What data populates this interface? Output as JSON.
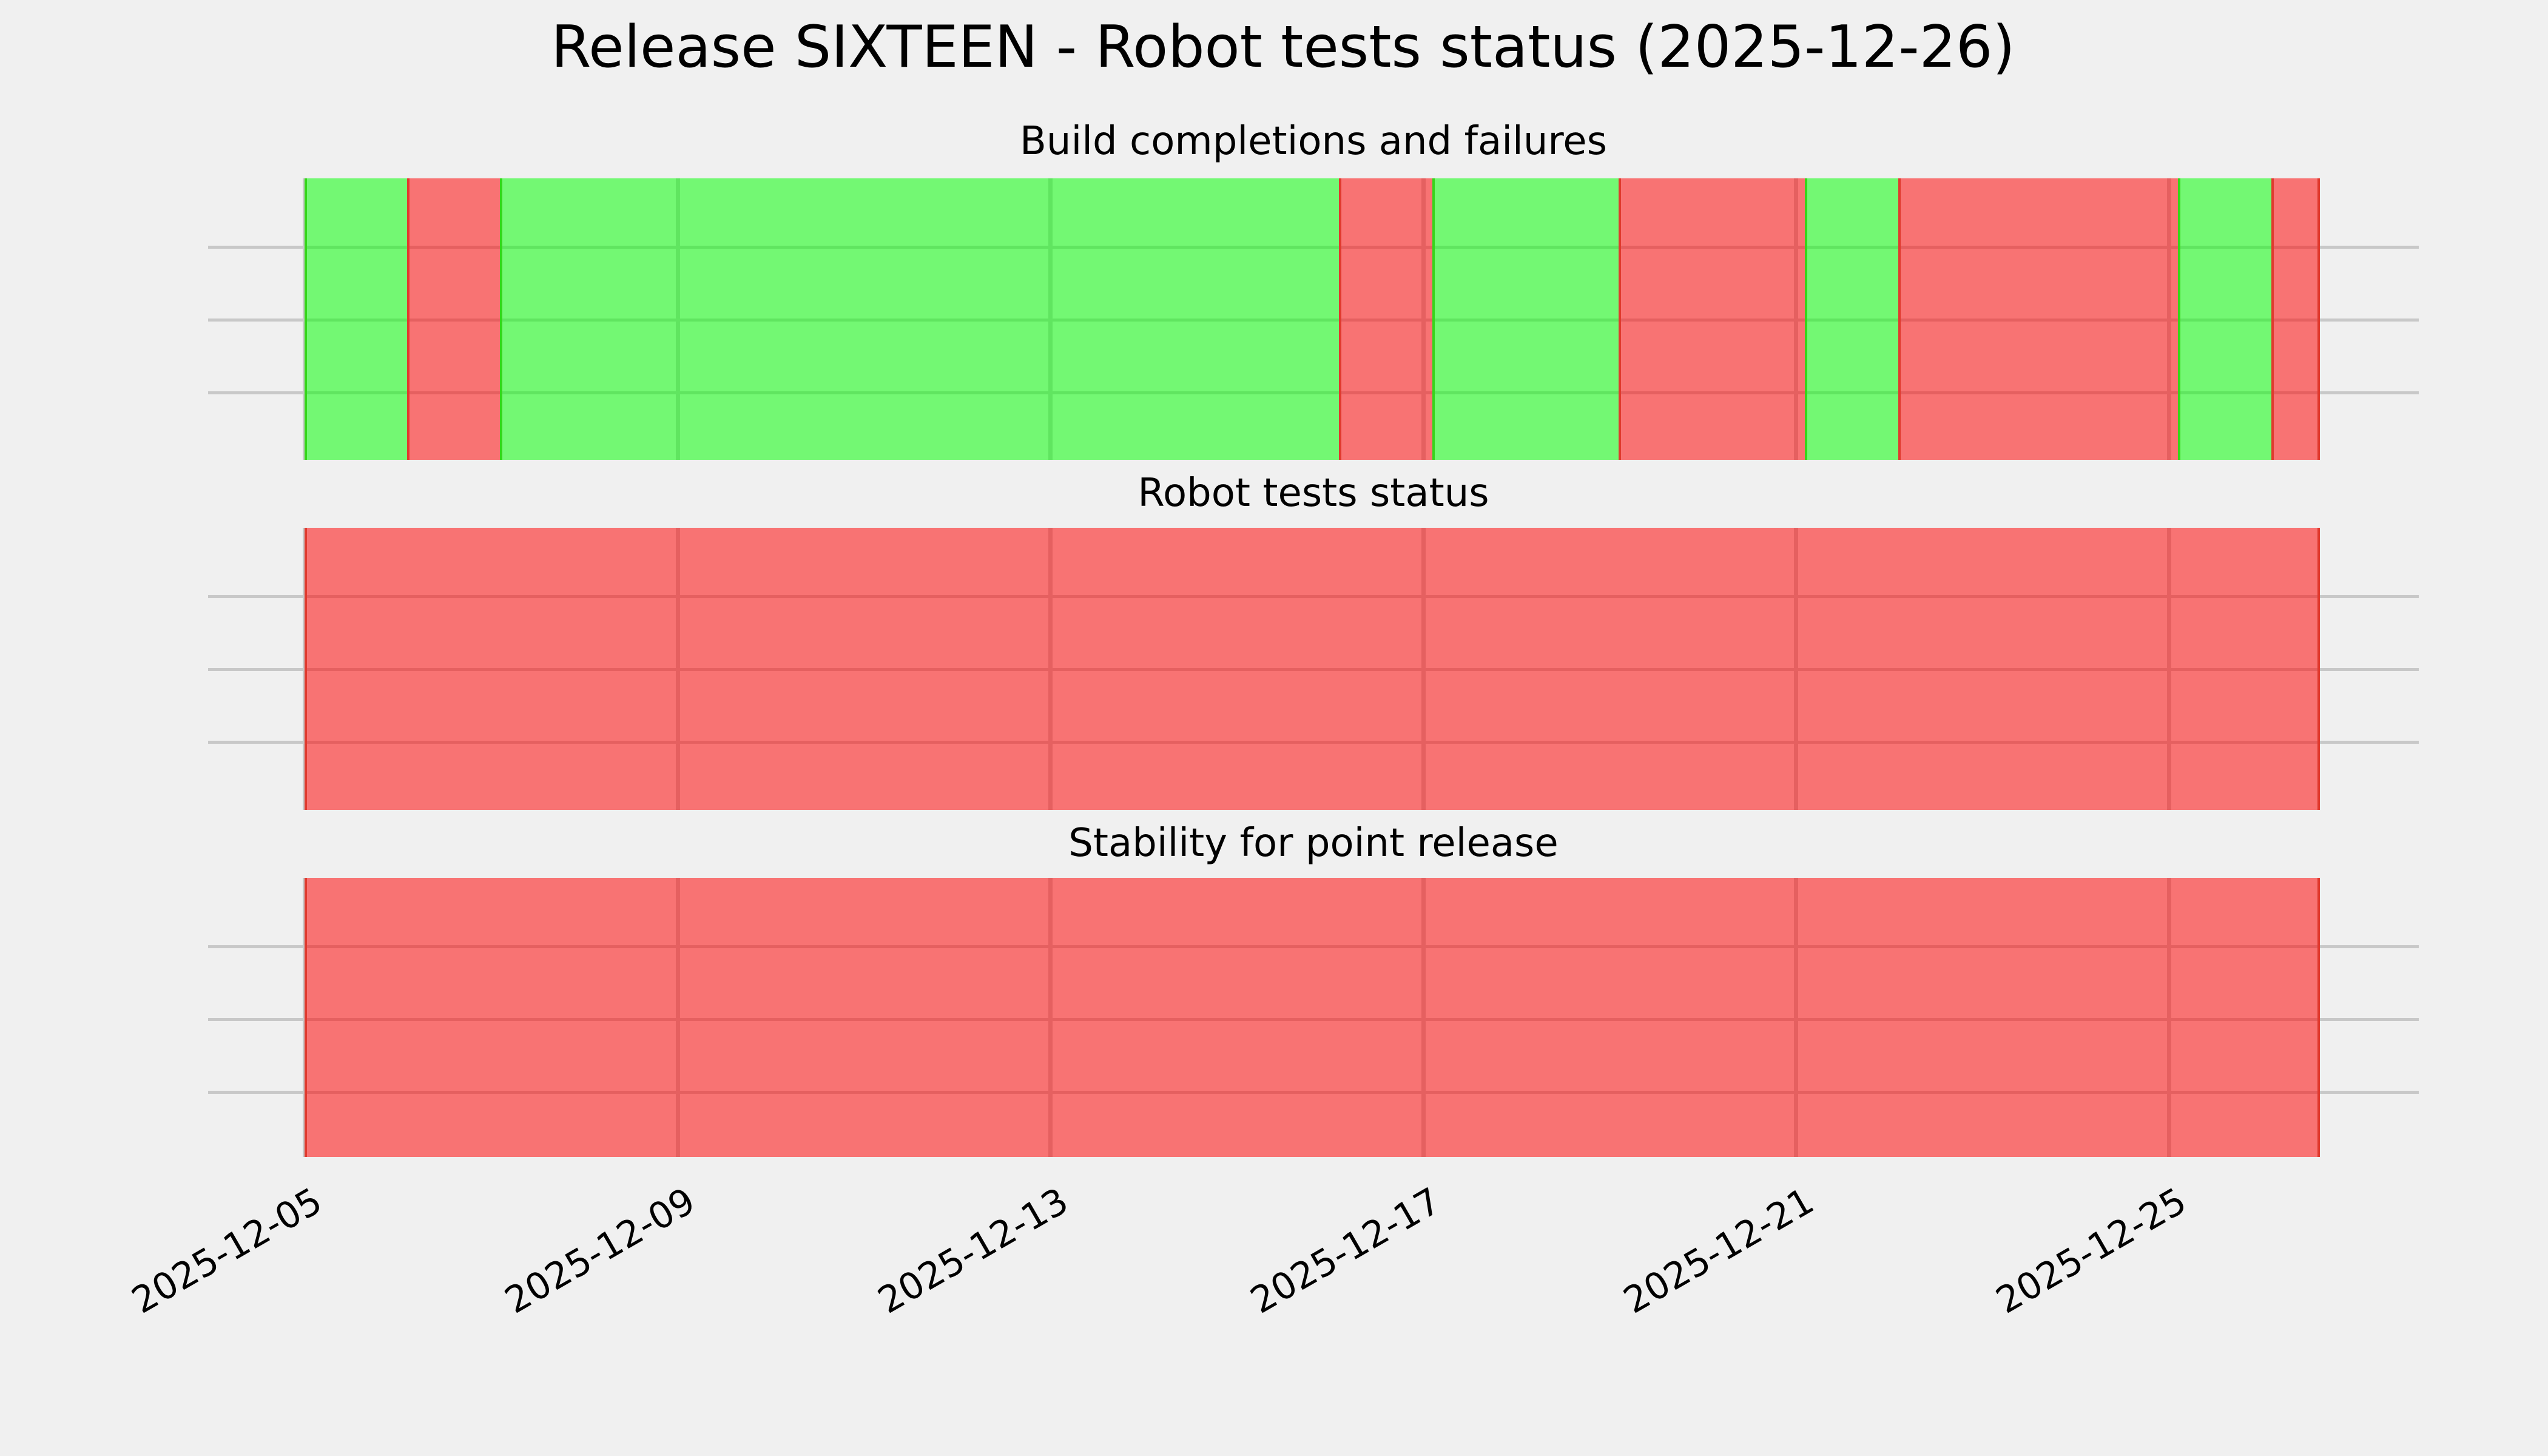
{
  "chart_data": {
    "type": "heatmap",
    "title": "Release SIXTEEN - Robot tests status (2025-12-26)",
    "panels": [
      {
        "title": "Build completions and failures",
        "statuses": [
          "pass",
          "fail",
          "pass",
          "pass",
          "pass",
          "pass",
          "pass",
          "pass",
          "pass",
          "pass",
          "pass",
          "fail",
          "pass",
          "pass",
          "fail",
          "fail",
          "pass",
          "fail",
          "fail",
          "fail",
          "pass",
          "fail"
        ]
      },
      {
        "title": "Robot tests status",
        "statuses": [
          "fail",
          "fail",
          "fail",
          "fail",
          "fail",
          "fail",
          "fail",
          "fail",
          "fail",
          "fail",
          "fail",
          "fail",
          "fail",
          "fail",
          "fail",
          "fail",
          "fail",
          "fail",
          "fail",
          "fail",
          "fail",
          "fail"
        ]
      },
      {
        "title": "Stability for point release",
        "statuses": [
          "fail",
          "fail",
          "fail",
          "fail",
          "fail",
          "fail",
          "fail",
          "fail",
          "fail",
          "fail",
          "fail",
          "fail",
          "fail",
          "fail",
          "fail",
          "fail",
          "fail",
          "fail",
          "fail",
          "fail",
          "fail",
          "fail"
        ]
      }
    ],
    "dates": [
      "2025-12-05",
      "2025-12-06",
      "2025-12-07",
      "2025-12-08",
      "2025-12-09",
      "2025-12-10",
      "2025-12-11",
      "2025-12-12",
      "2025-12-13",
      "2025-12-14",
      "2025-12-15",
      "2025-12-16",
      "2025-12-17",
      "2025-12-18",
      "2025-12-19",
      "2025-12-20",
      "2025-12-21",
      "2025-12-22",
      "2025-12-23",
      "2025-12-24",
      "2025-12-25",
      "2025-12-26"
    ],
    "x_ticks": [
      "2025-12-05",
      "2025-12-09",
      "2025-12-13",
      "2025-12-17",
      "2025-12-21",
      "2025-12-25"
    ],
    "legend_position": "none",
    "grid": true,
    "colors": {
      "background": "#f0f0f0",
      "grid": "#c8c8c8",
      "pass_fill": "rgba(0,255,0,0.52)",
      "fail_fill": "rgba(255,0,0,0.52)",
      "pass_edge": "#35d61a",
      "fail_edge": "#e03a2e",
      "pass_effective": "#75f675",
      "fail_effective": "#f77474",
      "text": "#000000"
    }
  }
}
